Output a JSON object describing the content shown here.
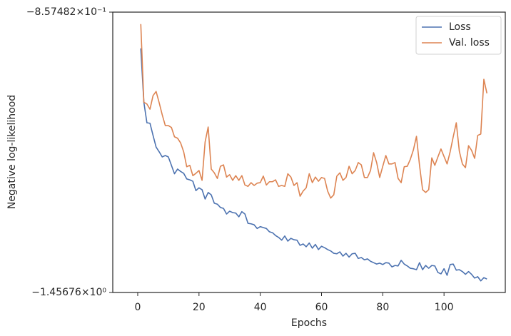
{
  "chart_data": {
    "type": "line",
    "xlabel": "Epochs",
    "ylabel": "Negative log-likelihood",
    "x": [
      1,
      2,
      3,
      4,
      5,
      6,
      7,
      8,
      9,
      10,
      11,
      12,
      13,
      14,
      15,
      16,
      17,
      18,
      19,
      20,
      21,
      22,
      23,
      24,
      25,
      26,
      27,
      28,
      29,
      30,
      31,
      32,
      33,
      34,
      35,
      36,
      37,
      38,
      39,
      40,
      41,
      42,
      43,
      44,
      45,
      46,
      47,
      48,
      49,
      50,
      51,
      52,
      53,
      54,
      55,
      56,
      57,
      58,
      59,
      60,
      61,
      62,
      63,
      64,
      65,
      66,
      67,
      68,
      69,
      70,
      71,
      72,
      73,
      74,
      75,
      76,
      77,
      78,
      79,
      80,
      81,
      82,
      83,
      84,
      85,
      86,
      87,
      88,
      89,
      90,
      91,
      92,
      93,
      94,
      95,
      96,
      97,
      98,
      99,
      100,
      101,
      102,
      103,
      104,
      105,
      106,
      107,
      108,
      109,
      110,
      111,
      112,
      113,
      114
    ],
    "series": [
      {
        "name": "Loss",
        "color": "#4c72b0",
        "values": [
          -0.935,
          -1.05,
          -1.094,
          -1.095,
          -1.121,
          -1.146,
          -1.156,
          -1.167,
          -1.164,
          -1.167,
          -1.185,
          -1.203,
          -1.193,
          -1.198,
          -1.202,
          -1.214,
          -1.216,
          -1.219,
          -1.239,
          -1.233,
          -1.237,
          -1.257,
          -1.243,
          -1.248,
          -1.266,
          -1.268,
          -1.275,
          -1.277,
          -1.289,
          -1.283,
          -1.286,
          -1.287,
          -1.295,
          -1.284,
          -1.289,
          -1.309,
          -1.31,
          -1.312,
          -1.32,
          -1.316,
          -1.318,
          -1.32,
          -1.327,
          -1.329,
          -1.335,
          -1.339,
          -1.345,
          -1.336,
          -1.347,
          -1.341,
          -1.344,
          -1.345,
          -1.356,
          -1.353,
          -1.359,
          -1.351,
          -1.362,
          -1.354,
          -1.365,
          -1.358,
          -1.361,
          -1.365,
          -1.368,
          -1.373,
          -1.374,
          -1.37,
          -1.379,
          -1.373,
          -1.381,
          -1.374,
          -1.373,
          -1.384,
          -1.382,
          -1.387,
          -1.385,
          -1.39,
          -1.393,
          -1.396,
          -1.394,
          -1.397,
          -1.393,
          -1.394,
          -1.402,
          -1.399,
          -1.4,
          -1.388,
          -1.396,
          -1.4,
          -1.405,
          -1.406,
          -1.408,
          -1.393,
          -1.408,
          -1.399,
          -1.405,
          -1.399,
          -1.4,
          -1.414,
          -1.417,
          -1.406,
          -1.42,
          -1.397,
          -1.396,
          -1.409,
          -1.408,
          -1.412,
          -1.418,
          -1.412,
          -1.418,
          -1.426,
          -1.423,
          -1.432,
          -1.425,
          -1.428
        ]
      },
      {
        "name": "Val. loss",
        "color": "#dd8452",
        "values": [
          -0.883,
          -1.05,
          -1.054,
          -1.065,
          -1.036,
          -1.027,
          -1.051,
          -1.077,
          -1.1,
          -1.1,
          -1.104,
          -1.124,
          -1.127,
          -1.137,
          -1.156,
          -1.188,
          -1.185,
          -1.207,
          -1.202,
          -1.196,
          -1.217,
          -1.135,
          -1.103,
          -1.193,
          -1.201,
          -1.213,
          -1.187,
          -1.184,
          -1.21,
          -1.205,
          -1.217,
          -1.207,
          -1.217,
          -1.207,
          -1.227,
          -1.23,
          -1.222,
          -1.228,
          -1.223,
          -1.222,
          -1.208,
          -1.227,
          -1.22,
          -1.22,
          -1.216,
          -1.23,
          -1.228,
          -1.23,
          -1.203,
          -1.21,
          -1.228,
          -1.222,
          -1.251,
          -1.24,
          -1.233,
          -1.203,
          -1.222,
          -1.21,
          -1.219,
          -1.211,
          -1.213,
          -1.24,
          -1.255,
          -1.248,
          -1.208,
          -1.201,
          -1.217,
          -1.211,
          -1.187,
          -1.203,
          -1.196,
          -1.179,
          -1.184,
          -1.211,
          -1.211,
          -1.196,
          -1.158,
          -1.179,
          -1.211,
          -1.187,
          -1.164,
          -1.182,
          -1.182,
          -1.179,
          -1.213,
          -1.222,
          -1.188,
          -1.187,
          -1.172,
          -1.152,
          -1.123,
          -1.185,
          -1.237,
          -1.243,
          -1.237,
          -1.169,
          -1.185,
          -1.167,
          -1.15,
          -1.166,
          -1.182,
          -1.156,
          -1.124,
          -1.094,
          -1.155,
          -1.182,
          -1.19,
          -1.143,
          -1.153,
          -1.17,
          -1.121,
          -1.118,
          -1.001,
          -1.031
        ]
      }
    ],
    "xlim": [
      -8.15,
      120
    ],
    "xticks": [
      0,
      20,
      40,
      60,
      80,
      100
    ],
    "ylim": [
      -1.45676,
      -0.857482
    ],
    "yticks": [
      {
        "value": -1.45676,
        "label": "−1.45676×10⁰"
      },
      {
        "value": -0.857482,
        "label": "−8.57482×10⁻¹"
      }
    ],
    "grid": false,
    "legend": "upper right"
  }
}
